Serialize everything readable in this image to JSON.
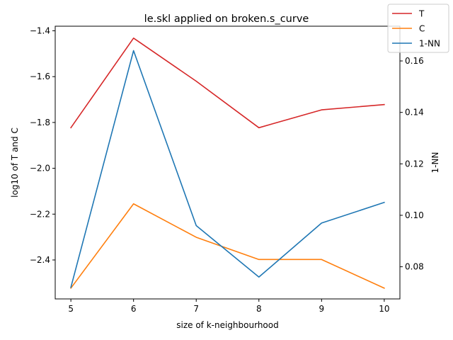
{
  "chart_data": {
    "type": "line",
    "title": "le.skl applied on broken.s_curve",
    "xlabel": "size of k-neighbourhood",
    "ylabel_left": "log10 of T and C",
    "ylabel_right": "1-NN",
    "x": [
      5,
      6,
      7,
      8,
      9,
      10
    ],
    "x_ticks": [
      "5",
      "6",
      "7",
      "8",
      "9",
      "10"
    ],
    "xlim": [
      4.75,
      10.25
    ],
    "ylim_left": [
      -2.57,
      -1.38
    ],
    "ylim_right": [
      0.0675,
      0.1735
    ],
    "left_ticks": [
      {
        "value": -1.4,
        "label": "−1.4"
      },
      {
        "value": -1.6,
        "label": "−1.6"
      },
      {
        "value": -1.8,
        "label": "−1.8"
      },
      {
        "value": -2.0,
        "label": "−2.0"
      },
      {
        "value": -2.2,
        "label": "−2.2"
      },
      {
        "value": -2.4,
        "label": "−2.4"
      }
    ],
    "right_ticks": [
      {
        "value": 0.08,
        "label": "0.08"
      },
      {
        "value": 0.1,
        "label": "0.10"
      },
      {
        "value": 0.12,
        "label": "0.12"
      },
      {
        "value": 0.14,
        "label": "0.14"
      },
      {
        "value": 0.16,
        "label": "0.16"
      }
    ],
    "grid": false,
    "legend_position": "top-right",
    "series": [
      {
        "name": "T",
        "axis": "left",
        "color": "#d62728",
        "values": [
          -1.823,
          -1.432,
          -1.62,
          -1.823,
          -1.745,
          -1.722
        ]
      },
      {
        "name": "C",
        "axis": "left",
        "color": "#ff7f0e",
        "values": [
          -2.523,
          -2.155,
          -2.301,
          -2.398,
          -2.398,
          -2.523
        ]
      },
      {
        "name": "1-NN",
        "axis": "right",
        "color": "#1f77b4",
        "values": [
          0.072,
          0.164,
          0.096,
          0.076,
          0.097,
          0.105
        ]
      }
    ]
  }
}
